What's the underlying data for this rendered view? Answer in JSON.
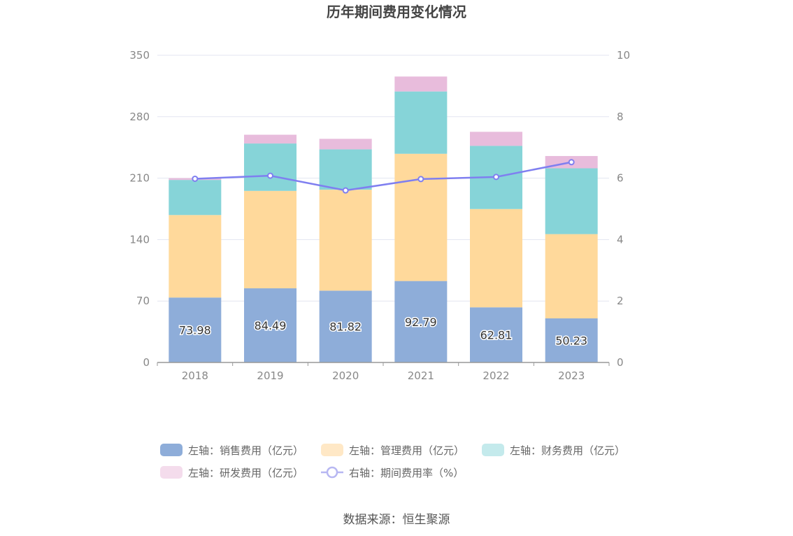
{
  "chart_data": {
    "type": "bar",
    "title": "历年期间费用变化情况",
    "categories": [
      "2018",
      "2019",
      "2020",
      "2021",
      "2022",
      "2023"
    ],
    "series": [
      {
        "name": "左轴：销售费用（亿元）",
        "axis": "left",
        "stack": "total",
        "color": "#8eadd9",
        "legend_color": "#8eadd9",
        "values": [
          73.98,
          84.49,
          81.82,
          92.79,
          62.81,
          50.23
        ],
        "labels": [
          "73.98",
          "84.49",
          "81.82",
          "92.79",
          "62.81",
          "50.23"
        ]
      },
      {
        "name": "左轴：管理费用（亿元）",
        "axis": "left",
        "stack": "total",
        "color": "#ffd99b",
        "legend_color": "#ffe8c6",
        "values": [
          94,
          111,
          115,
          145,
          112,
          96
        ]
      },
      {
        "name": "左轴：财务费用（亿元）",
        "axis": "left",
        "stack": "total",
        "color": "#86d4d8",
        "legend_color": "#c4eaec",
        "values": [
          40,
          54,
          46,
          71,
          72,
          75
        ]
      },
      {
        "name": "左轴：研发费用（亿元）",
        "axis": "left",
        "stack": "total",
        "color": "#e8bcdc",
        "legend_color": "#f4dcec",
        "values": [
          2,
          10,
          12,
          17,
          16,
          14
        ]
      },
      {
        "name": "右轴：期间费用率（%）",
        "axis": "right",
        "type": "line",
        "color": "#7f7ff0",
        "values": [
          5.98,
          6.08,
          5.6,
          5.97,
          6.04,
          6.52
        ]
      }
    ],
    "left_axis": {
      "min": 0,
      "max": 350,
      "ticks": [
        "0",
        "70",
        "140",
        "210",
        "280",
        "350"
      ]
    },
    "right_axis": {
      "min": 0,
      "max": 10,
      "ticks": [
        "0",
        "2",
        "4",
        "6",
        "8",
        "10"
      ]
    },
    "grid": true,
    "legend_position": "bottom",
    "source": "数据来源：恒生聚源"
  }
}
